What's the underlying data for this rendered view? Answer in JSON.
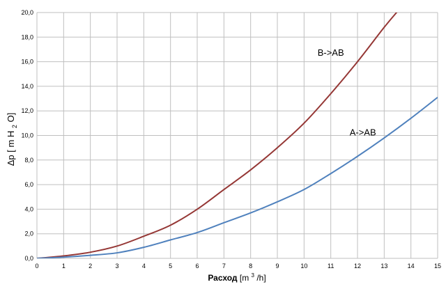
{
  "chart_data": {
    "type": "line",
    "xlabel": {
      "main": "Расход",
      "unit_prefix": "[m",
      "unit_exp": "3",
      "unit_suffix": "/h]"
    },
    "ylabel": {
      "prefix": "Δp [ m H",
      "sub": "2",
      "suffix": "O]"
    },
    "xlim": [
      0,
      15
    ],
    "ylim": [
      0,
      20
    ],
    "x_ticks": [
      0,
      1,
      2,
      3,
      4,
      5,
      6,
      7,
      8,
      9,
      10,
      11,
      12,
      13,
      14,
      15
    ],
    "y_ticks": [
      "0,0",
      "2,0",
      "4,0",
      "6,0",
      "8,0",
      "10,0",
      "12,0",
      "14,0",
      "16,0",
      "18,0",
      "20,0"
    ],
    "grid": true,
    "series": [
      {
        "name": "B->AB",
        "color": "#953735",
        "x": [
          0,
          1,
          2,
          3,
          4,
          5,
          6,
          7,
          8,
          9,
          10,
          11,
          12,
          13,
          13.5
        ],
        "y": [
          0,
          0.2,
          0.5,
          1.0,
          1.8,
          2.7,
          4.0,
          5.6,
          7.2,
          9.0,
          11.0,
          13.4,
          16.0,
          18.8,
          20.1
        ]
      },
      {
        "name": "A->AB",
        "color": "#4f81bd",
        "x": [
          0,
          1,
          2,
          3,
          4,
          5,
          6,
          7,
          8,
          9,
          10,
          11,
          12,
          13,
          14,
          15
        ],
        "y": [
          0,
          0.1,
          0.25,
          0.45,
          0.9,
          1.5,
          2.1,
          2.9,
          3.7,
          4.6,
          5.6,
          6.9,
          8.3,
          9.8,
          11.4,
          13.1
        ]
      }
    ],
    "annotations": [
      {
        "text": "B->AB",
        "x": 11.0,
        "y": 16.5
      },
      {
        "text": "A->AB",
        "x": 12.2,
        "y": 10.0
      }
    ]
  }
}
